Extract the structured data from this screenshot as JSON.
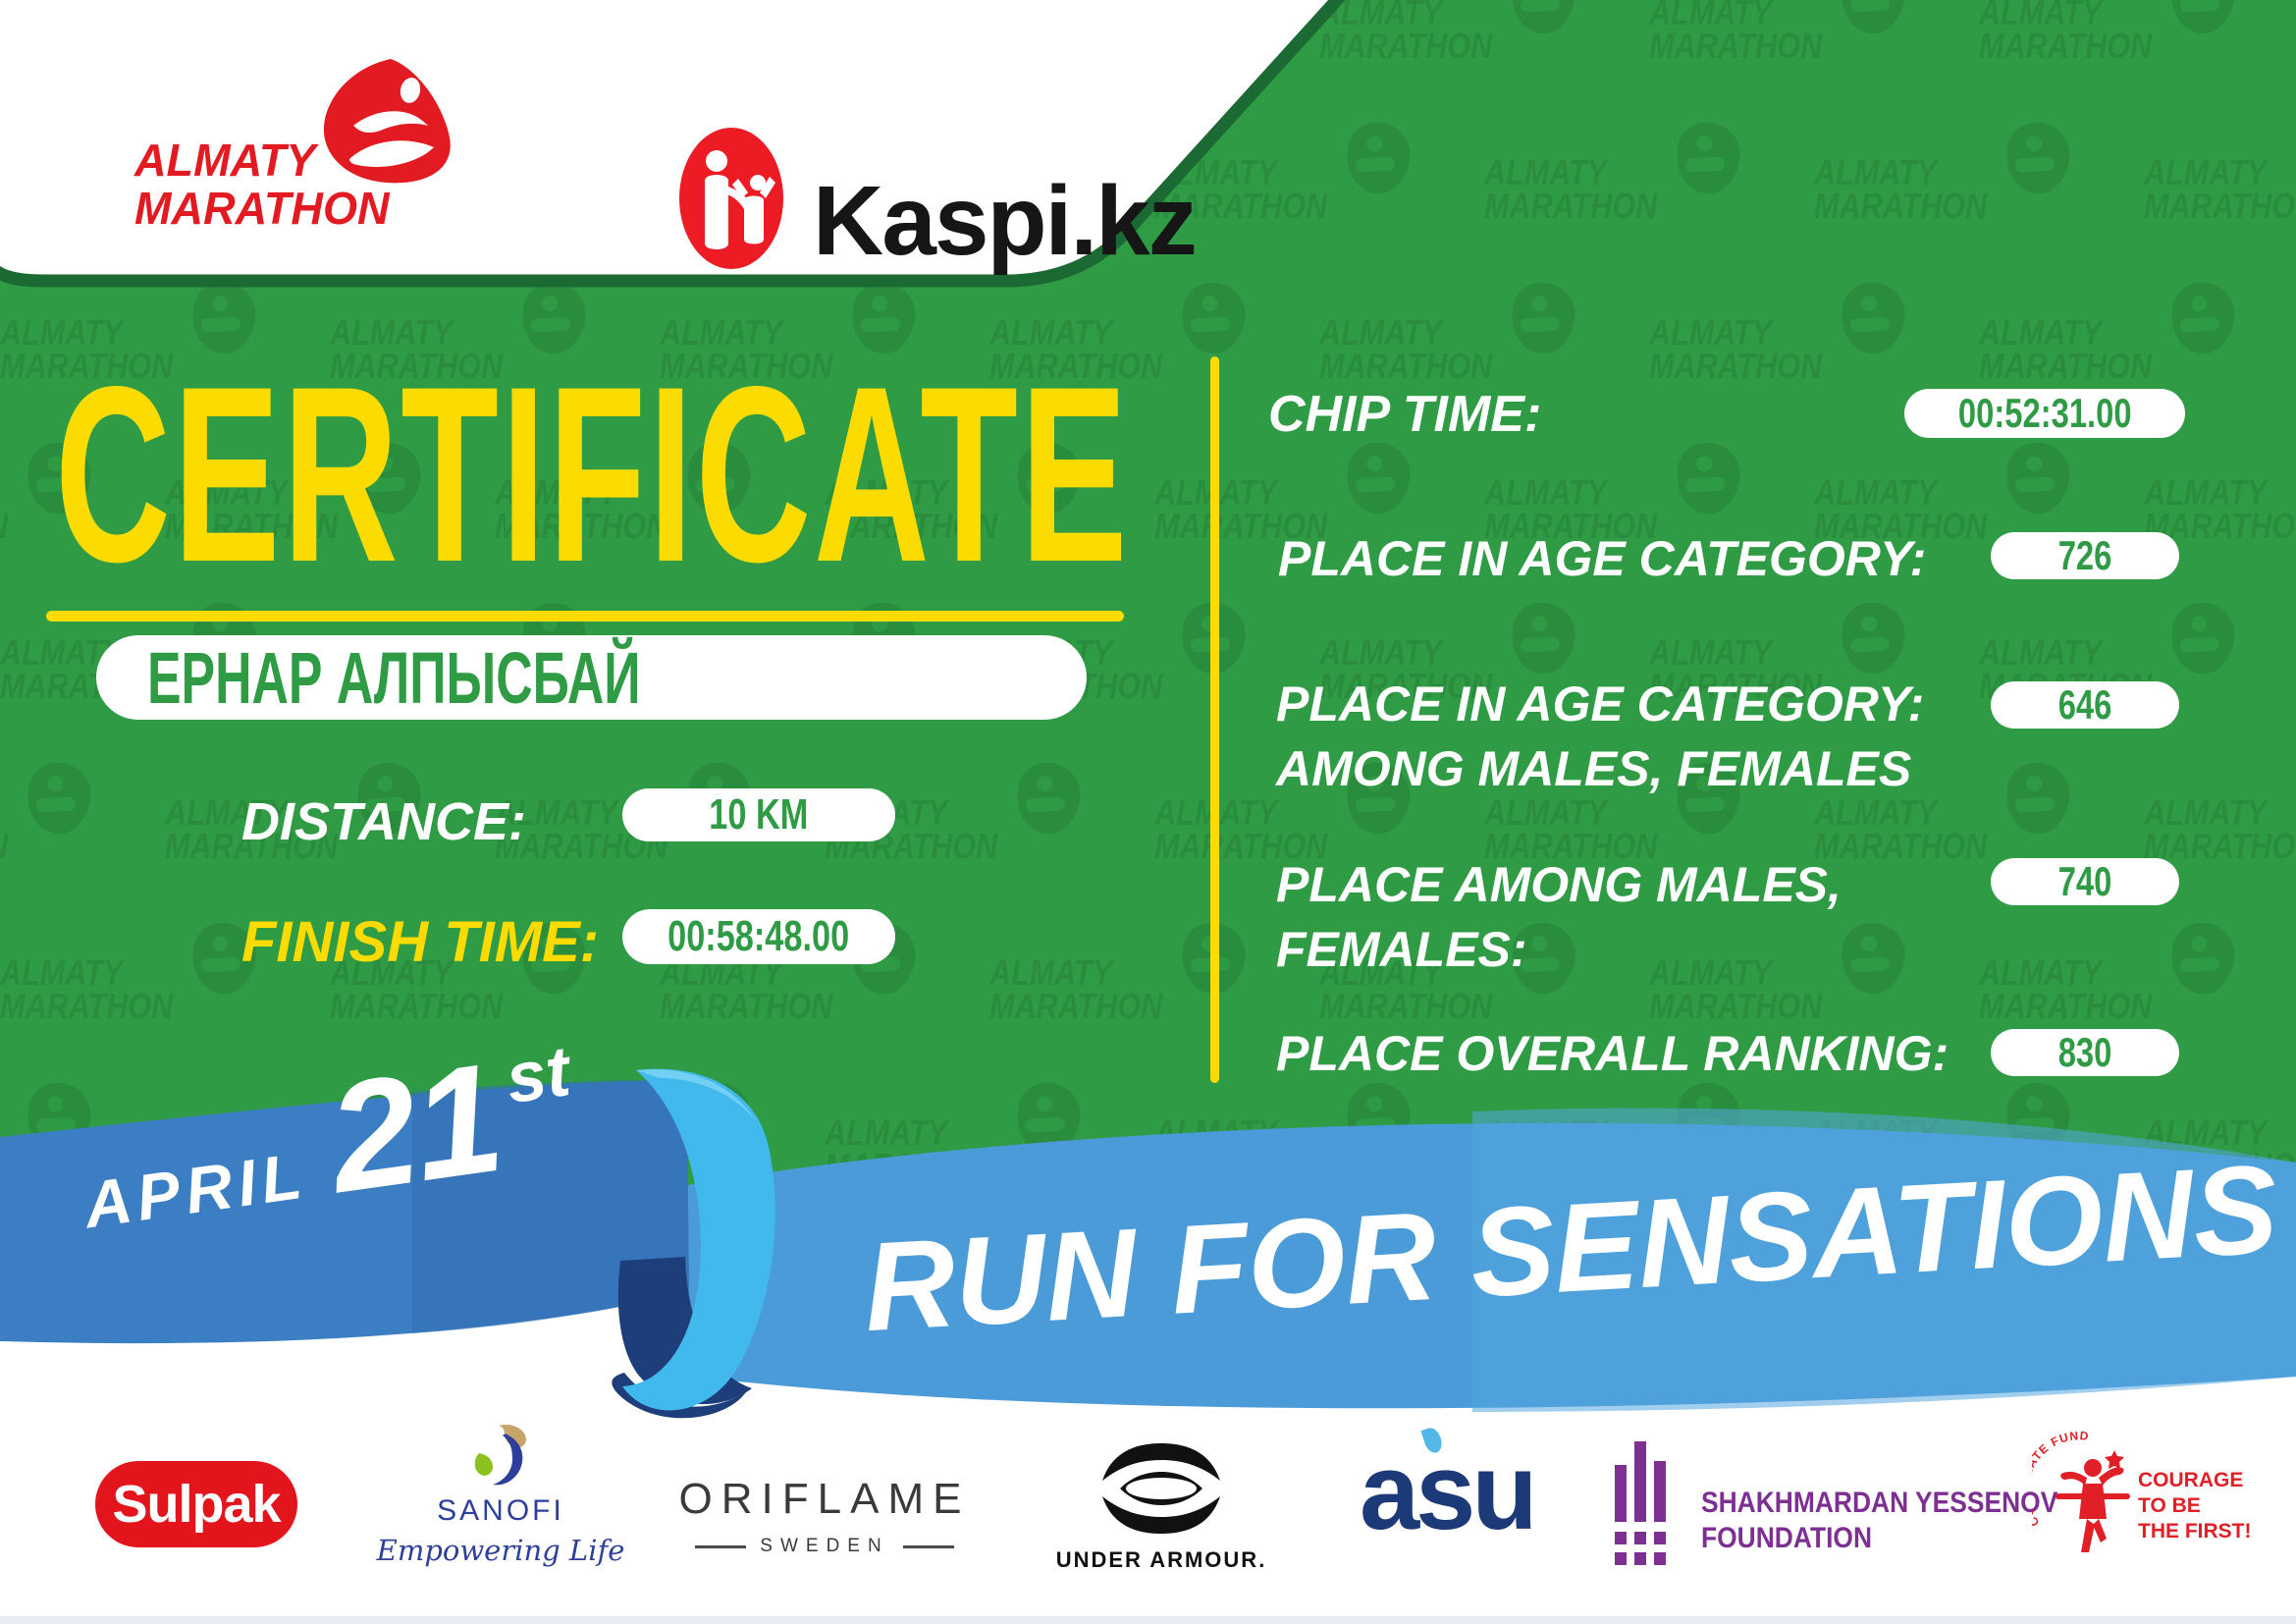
{
  "header": {
    "almaty_logo": {
      "line1": "ALMATY",
      "line2": "MARATHON"
    },
    "kaspi_logo": {
      "text": "Kaspi.kz"
    }
  },
  "watermark": {
    "line1": "ALMATY",
    "line2": "MARATHON"
  },
  "certificate": {
    "title": "CERTIFICATE",
    "name": "ЕРНАР АЛПЫСБАЙ",
    "distance_label": "DISTANCE:",
    "distance_value": "10 KM",
    "finish_label": "FINISH TIME:",
    "finish_value": "00:58:48.00"
  },
  "results": {
    "chip": {
      "label": "CHIP TIME:",
      "value": "00:52:31.00"
    },
    "rows": [
      {
        "label1": "PLACE IN AGE CATEGORY:",
        "label2": "",
        "value": "726"
      },
      {
        "label1": "PLACE IN AGE CATEGORY:",
        "label2": "AMONG MALES, FEMALES",
        "value": "646"
      },
      {
        "label1": "PLACE AMONG MALES,",
        "label2": "FEMALES:",
        "value": "740"
      },
      {
        "label1": "PLACE OVERALL RANKING:",
        "label2": "",
        "value": "830"
      }
    ]
  },
  "ribbon": {
    "date_month": "APRIL",
    "date_day": "21",
    "date_suffix": "st",
    "slogan": "RUN FOR SENSATIONS"
  },
  "sponsors": {
    "sulpak": "Sulpak",
    "sanofi_name": "SANOFI",
    "sanofi_tagline": "Empowering Life",
    "oriflame_name": "ORIFLAME",
    "oriflame_sub": "SWEDEN",
    "under_armour": "UNDER ARMOUR.",
    "asu": "asu",
    "yessenov_line1": "SHAKHMARDAN YESSENOV",
    "yessenov_line2": "FOUNDATION",
    "courage_arc": "CORPORATE FUND",
    "courage_line1": "COURAGE",
    "courage_line2": "TO BE",
    "courage_line3": "THE FIRST!"
  },
  "colors": {
    "background_green": "#2f9b44",
    "dark_green_border": "#1b6a33",
    "accent_yellow": "#fcdc00",
    "ribbon_blue_left": "#3b7ec4",
    "ribbon_blue_right": "#4b9bd8",
    "ribbon_cyan_curl": "#41b9ec",
    "ribbon_navy_fold": "#1d3e7b",
    "brand_red": "#e2141c",
    "value_green": "#2f9b44"
  }
}
